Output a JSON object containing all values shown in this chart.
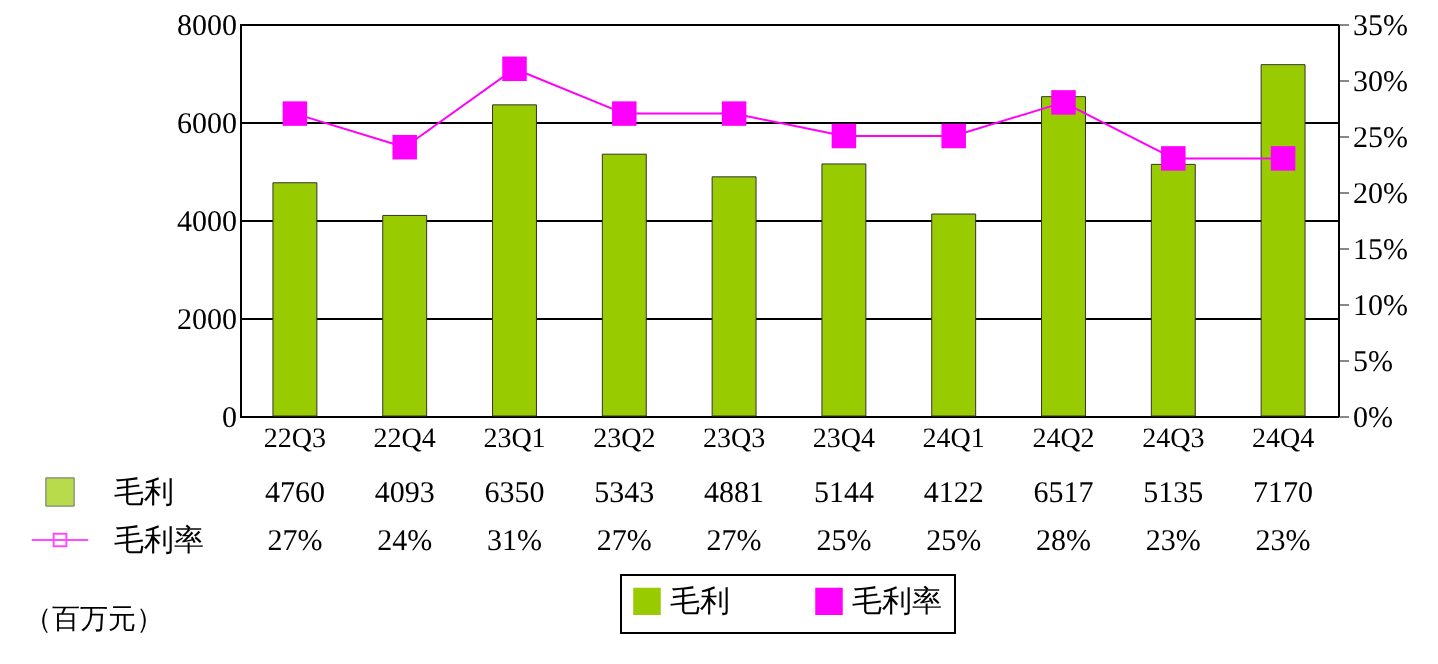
{
  "chart_data": {
    "type": "bar",
    "categories": [
      "22Q3",
      "22Q4",
      "23Q1",
      "23Q2",
      "23Q3",
      "23Q4",
      "24Q1",
      "24Q2",
      "24Q3",
      "24Q4"
    ],
    "series": [
      {
        "name": "毛利",
        "color": "#99cc00",
        "values": [
          4760,
          4093,
          6350,
          5343,
          4881,
          5144,
          4122,
          6517,
          5135,
          7170
        ],
        "value_labels": [
          "4760",
          "4093",
          "6350",
          "5343",
          "4881",
          "5144",
          "4122",
          "6517",
          "5135",
          "7170"
        ]
      },
      {
        "name": "毛利率",
        "type": "line",
        "axis": "y2",
        "color": "#ff00ff",
        "marker": "square",
        "values": [
          27,
          24,
          31,
          27,
          27,
          25,
          25,
          28,
          23,
          23
        ],
        "value_labels": [
          "27%",
          "24%",
          "31%",
          "27%",
          "27%",
          "25%",
          "25%",
          "28%",
          "23%",
          "23%"
        ]
      }
    ],
    "ylim": [
      0,
      8000
    ],
    "yticks": [
      0,
      2000,
      4000,
      6000,
      8000
    ],
    "y2lim": [
      0,
      35
    ],
    "y2ticks": [
      {
        "value": 0,
        "label": "0%"
      },
      {
        "value": 5,
        "label": "5%"
      },
      {
        "value": 10,
        "label": "10%"
      },
      {
        "value": 15,
        "label": "15%"
      },
      {
        "value": 20,
        "label": "20%"
      },
      {
        "value": 25,
        "label": "25%"
      },
      {
        "value": 30,
        "label": "30%"
      },
      {
        "value": 35,
        "label": "35%"
      }
    ],
    "grid": "y",
    "legend": "bottom",
    "annotations": [
      "（百万元）"
    ]
  }
}
